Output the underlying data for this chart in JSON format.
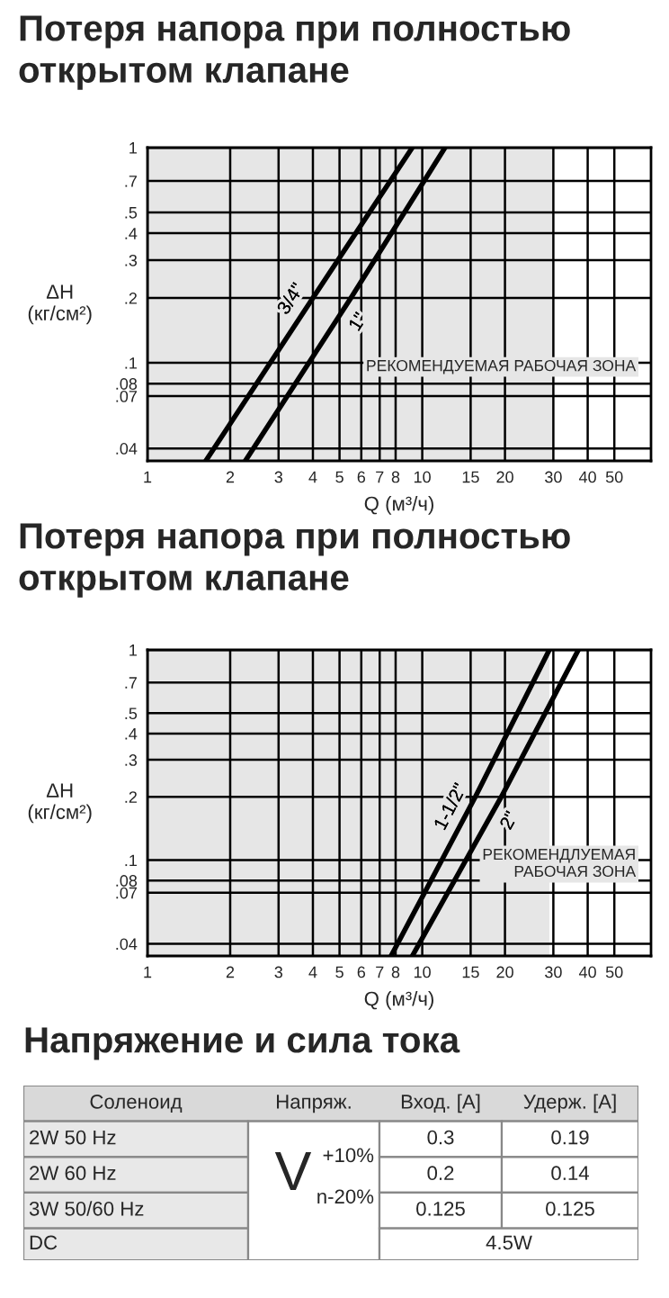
{
  "chart_data": [
    {
      "type": "line",
      "title": "Потеря напора при полностью открытом клапане",
      "xlabel": "Q (м³/ч)",
      "ylabel": "ΔH\n(кг/см²)",
      "log": "xy",
      "grid": true,
      "legend": false,
      "xlim": [
        1,
        68
      ],
      "xticks": [
        {
          "value": 1,
          "label": "1"
        },
        2,
        3,
        4,
        5,
        6,
        7,
        8,
        10,
        15,
        20,
        30,
        40,
        50
      ],
      "ylim": [
        0.035,
        1
      ],
      "yticks": [
        {
          "value": 1,
          "label": "1"
        },
        {
          "value": 0.7,
          "label": ".7"
        },
        {
          "value": 0.5,
          "label": ".5"
        },
        {
          "value": 0.4,
          "label": ".4"
        },
        {
          "value": 0.3,
          "label": ".3"
        },
        {
          "value": 0.2,
          "label": ".2"
        },
        {
          "value": 0.1,
          "label": ".1"
        },
        {
          "value": 0.08,
          "label": ".08"
        },
        {
          "value": 0.07,
          "label": ".07"
        },
        {
          "value": 0.04,
          "label": ".04"
        }
      ],
      "bands": [
        {
          "axis": "x",
          "from": 1,
          "to": 30,
          "label": "РЕКОМЕНДУЕМАЯ РАБОЧАЯ ЗОНА",
          "color": "#e6e6e6"
        }
      ],
      "series": [
        {
          "name": "3/4\"",
          "color": "#000000",
          "x": [
            1.63,
            4.0,
            9.2
          ],
          "values": [
            0.035,
            0.2,
            1
          ]
        },
        {
          "name": "1\"",
          "color": "#000000",
          "x": [
            2.27,
            5.5,
            12.1
          ],
          "values": [
            0.035,
            0.2,
            1
          ]
        }
      ]
    },
    {
      "type": "line",
      "title": "Потеря напора при полностью открытом клапане",
      "xlabel": "Q (м³/ч)",
      "ylabel": "ΔH\n(кг/см²)",
      "log": "xy",
      "grid": true,
      "legend": false,
      "xlim": [
        1,
        68
      ],
      "xticks": [
        {
          "value": 1,
          "label": "1"
        },
        2,
        3,
        4,
        5,
        6,
        7,
        8,
        10,
        15,
        20,
        30,
        40,
        50
      ],
      "ylim": [
        0.035,
        1
      ],
      "yticks": [
        {
          "value": 1,
          "label": "1"
        },
        {
          "value": 0.7,
          "label": ".7"
        },
        {
          "value": 0.5,
          "label": ".5"
        },
        {
          "value": 0.4,
          "label": ".4"
        },
        {
          "value": 0.3,
          "label": ".3"
        },
        {
          "value": 0.2,
          "label": ".2"
        },
        {
          "value": 0.1,
          "label": ".1"
        },
        {
          "value": 0.08,
          "label": ".08"
        },
        {
          "value": 0.07,
          "label": ".07"
        },
        {
          "value": 0.04,
          "label": ".04"
        }
      ],
      "bands": [
        {
          "axis": "x",
          "from": 1,
          "to": 29,
          "label": "РЕКОМЕНДЛУЕМАЯ\nРАБОЧАЯ ЗОНА",
          "color": "#e6e6e6"
        }
      ],
      "series": [
        {
          "name": "1-1/2\"",
          "color": "#000000",
          "x": [
            7.7,
            15.6,
            29
          ],
          "values": [
            0.035,
            0.2,
            1
          ]
        },
        {
          "name": "2\"",
          "color": "#000000",
          "x": [
            9.2,
            19.4,
            37
          ],
          "values": [
            0.035,
            0.2,
            1
          ]
        }
      ]
    },
    {
      "type": "other",
      "title": "Напряжение и сила тока",
      "annotations": [
        "Соленоид",
        "Напряж.",
        "Вход. [A]",
        "Удерж. [A]",
        "2W 50 Hz",
        "0.3",
        "0.19",
        "2W 60 Hz",
        "0.2",
        "0.14",
        "3W 50/60 Hz",
        "0.125",
        "0.125",
        "DC",
        "4.5W",
        "V",
        "+10%",
        "n-20%"
      ]
    }
  ]
}
